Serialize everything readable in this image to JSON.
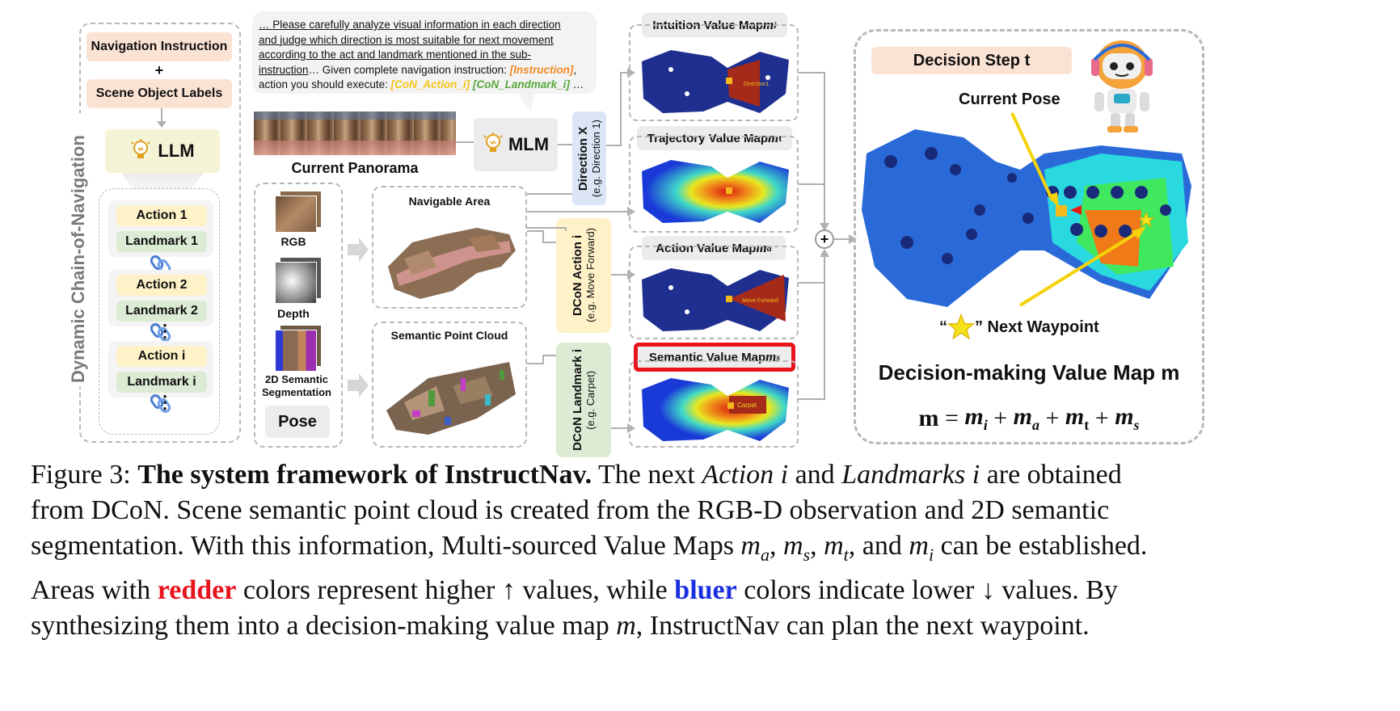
{
  "sidebar": {
    "title": "Dynamic Chain-of-Navigation",
    "nav_instruction": "Navigation Instruction",
    "plus": "+",
    "scene_labels": "Scene Object Labels",
    "llm": "LLM",
    "chain": [
      {
        "action": "Action 1",
        "landmark": "Landmark 1"
      },
      {
        "action": "Action 2",
        "landmark": "Landmark 2"
      },
      {
        "action": "Action i",
        "landmark": "Landmark i"
      }
    ],
    "dots": "⋮"
  },
  "prompt": {
    "line1": "… Please carefully analyze visual information in each direction",
    "line2": "and judge which direction is most suitable for next movement",
    "line3": "according to the act and landmark mentioned in the sub-",
    "line4_u": "instruction",
    "line4_rest": "… Given complete navigation instruction: ",
    "instruction_tag": "[Instruction]",
    "line5": "action you should execute: ",
    "action_tag": "[CoN_Action_i]",
    "landmark_tag": "[CoN_Landmark_i]",
    "ellipsis": " …",
    "colors": {
      "instruction": "#f08a24",
      "action": "#f5c518",
      "landmark": "#58a83c"
    }
  },
  "panorama": {
    "label": "Current Panorama"
  },
  "mlm": {
    "label": "MLM"
  },
  "direction": {
    "title": "Direction X",
    "example": "(e.g. Direction 1)"
  },
  "observations": {
    "rgb": "RGB",
    "depth": "Depth",
    "seg": "2D Semantic Segmentation",
    "pose": "Pose"
  },
  "navigable": {
    "label": "Navigable Area"
  },
  "pointcloud": {
    "label": "Semantic Point Cloud"
  },
  "dcon_action": {
    "title": "DCoN Action i",
    "example": "(e.g. Move Forward)"
  },
  "dcon_landmark": {
    "title": "DCoN Landmark i",
    "example": "(e.g. Carpet)"
  },
  "maps": {
    "intuition": {
      "label": "Intuition Value Map ",
      "sym": "m",
      "sub": "i",
      "region": "Direction1"
    },
    "trajectory": {
      "label": "Trajectory Value Map ",
      "sym": "m",
      "sub": "t"
    },
    "action": {
      "label": "Action Value Map ",
      "sym": "m",
      "sub": "a",
      "region": "Move Forward"
    },
    "semantic": {
      "label": "Semantic Value Map ",
      "sym": "m",
      "sub": "s",
      "region": "Carpet"
    }
  },
  "plus_op": "+",
  "decision": {
    "step": "Decision Step t",
    "current_pose": "Current Pose",
    "waypoint_open": "“",
    "waypoint_close": "” Next Waypoint",
    "title": "Decision-making Value Map m",
    "formula": {
      "m": "m",
      "eq": " = ",
      "mi": "m",
      "i": "i",
      "p1": " + ",
      "ma": "m",
      "a": "a",
      "p2": " + ",
      "mt": "m",
      "t": "t",
      "p3": " + ",
      "ms": "m",
      "s": "s"
    }
  },
  "caption": {
    "fig": "Figure 3: ",
    "title": "The system framework of InstructNav.",
    "t1": " The next ",
    "action_i": "Action i",
    "t2": " and ",
    "landmarks_i": "Landmarks i",
    "t3": " are obtained",
    "line2": "from DCoN. Scene semantic point cloud is created from the RGB-D observation and 2D semantic",
    "line3a": "segmentation. With this information, Multi-sourced Value Maps ",
    "ma": "m",
    "a": "a",
    "c1": ", ",
    "ms": "m",
    "s": "s",
    "c2": ", ",
    "mt": "m",
    "t": "t",
    "c3": ", and ",
    "mi": "m",
    "i": "i",
    "line3b": " can be established.",
    "line4a": "Areas with ",
    "redder": "redder",
    "line4b": " colors represent higher ↑ values, while ",
    "bluer": "bluer",
    "line4c": " colors indicate lower ↓ values. By",
    "line5a": "synthesizing them into a decision-making value map ",
    "m": "m",
    "line5b": ", InstructNav can plan the next waypoint.",
    "colors": {
      "redder": "#e8141b",
      "bluer": "#1a2fe0"
    }
  }
}
